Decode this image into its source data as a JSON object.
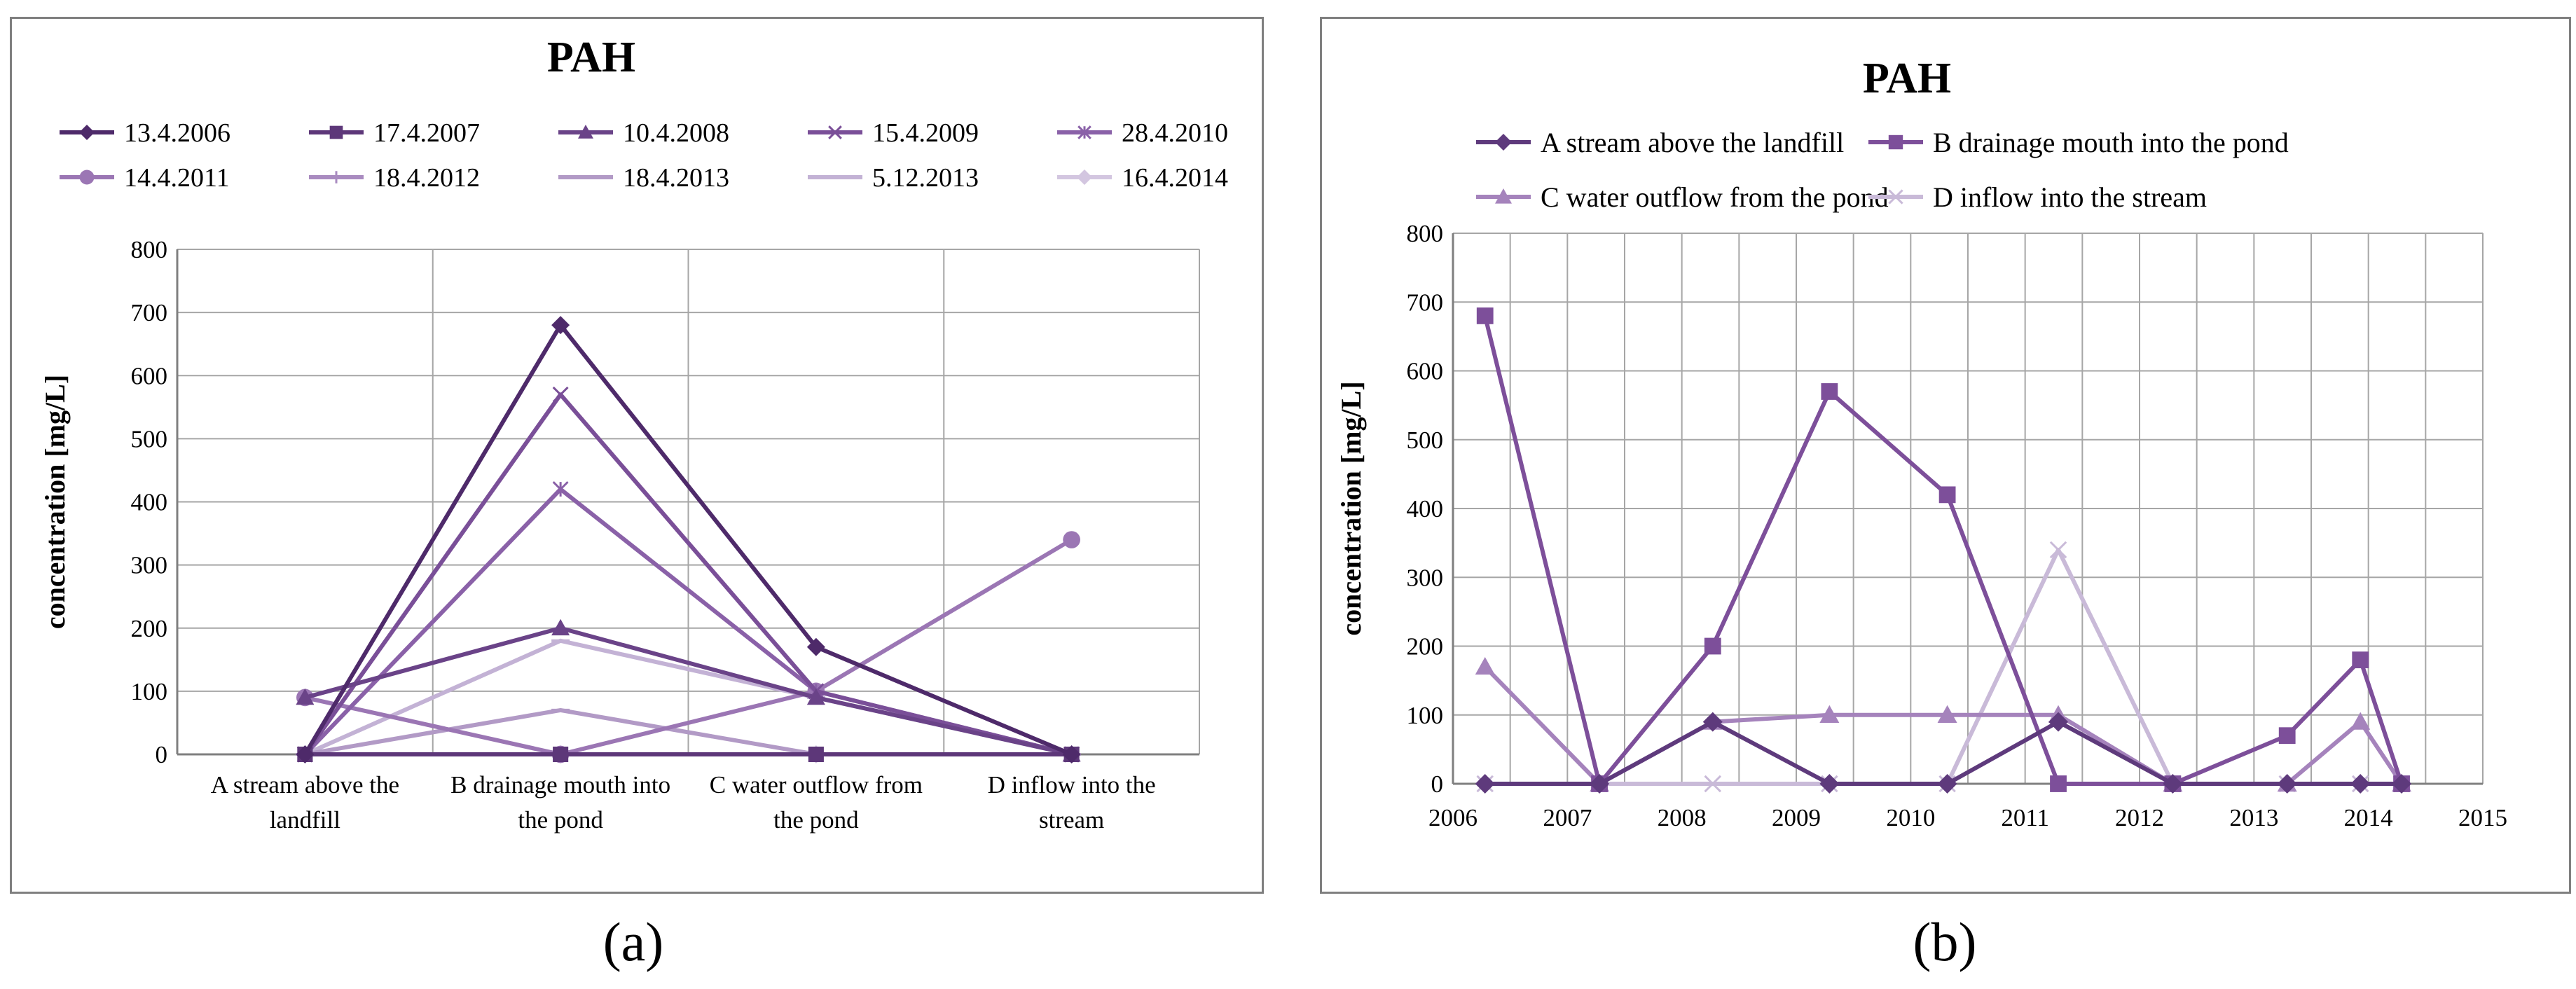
{
  "figure_captions": [
    "(a)",
    "(b)"
  ],
  "chart_data": [
    {
      "type": "line",
      "title": "PAH",
      "xlabel": "",
      "ylabel": "concentration [mg/L]",
      "ylim": [
        0,
        800
      ],
      "yticks": [
        0,
        100,
        200,
        300,
        400,
        500,
        600,
        700,
        800
      ],
      "categories": [
        "A stream above the landfill",
        "B drainage mouth into the pond",
        "C water outflow from the pond",
        "D inflow into the stream"
      ],
      "category_lines": [
        [
          "A stream above the",
          "landfill"
        ],
        [
          "B drainage mouth into",
          "the pond"
        ],
        [
          "C water outflow from",
          "the pond"
        ],
        [
          "D inflow into the",
          "stream"
        ]
      ],
      "legend_position": "top",
      "series": [
        {
          "name": "13.4.2006",
          "marker": "diamond",
          "color": "#4e2a6a",
          "values": [
            0,
            680,
            170,
            0
          ]
        },
        {
          "name": "17.4.2007",
          "marker": "square",
          "color": "#5d3779",
          "values": [
            0,
            0,
            0,
            0
          ]
        },
        {
          "name": "10.4.2008",
          "marker": "triangle",
          "color": "#6a4388",
          "values": [
            90,
            200,
            90,
            0
          ]
        },
        {
          "name": "15.4.2009",
          "marker": "x",
          "color": "#7a4f98",
          "values": [
            0,
            570,
            100,
            0
          ]
        },
        {
          "name": "28.4.2010",
          "marker": "star",
          "color": "#8a61a8",
          "values": [
            0,
            420,
            100,
            0
          ]
        },
        {
          "name": "14.4.2011",
          "marker": "circle",
          "color": "#9b76b4",
          "values": [
            90,
            0,
            100,
            340
          ]
        },
        {
          "name": "18.4.2012",
          "marker": "plus",
          "color": "#a98bc0",
          "values": [
            0,
            0,
            0,
            0
          ]
        },
        {
          "name": "18.4.2013",
          "marker": "dash",
          "color": "#b29ac6",
          "values": [
            0,
            70,
            0,
            0
          ]
        },
        {
          "name": "5.12.2013",
          "marker": "dash",
          "color": "#c3b2d5",
          "values": [
            0,
            180,
            90,
            0
          ]
        },
        {
          "name": "16.4.2014",
          "marker": "diamond",
          "color": "#d3c6e0",
          "values": [
            0,
            0,
            0,
            0
          ]
        }
      ]
    },
    {
      "type": "line",
      "title": "PAH",
      "xlabel": "",
      "ylabel": "concentration [mg/L]",
      "xlim": [
        2006,
        2015
      ],
      "xticks": [
        2006,
        2007,
        2008,
        2009,
        2010,
        2011,
        2012,
        2013,
        2014,
        2015
      ],
      "ylim": [
        0,
        800
      ],
      "yticks": [
        0,
        100,
        200,
        300,
        400,
        500,
        600,
        700,
        800
      ],
      "legend_position": "top",
      "series": [
        {
          "name": "A stream above the landfill",
          "marker": "diamond",
          "color": "#5e3a7c",
          "x": [
            2006.28,
            2007.28,
            2008.27,
            2009.29,
            2010.32,
            2011.29,
            2012.29,
            2013.29,
            2013.93,
            2014.29
          ],
          "values": [
            0,
            0,
            90,
            0,
            0,
            90,
            0,
            0,
            0,
            0
          ]
        },
        {
          "name": "B drainage mouth into the pond",
          "marker": "square",
          "color": "#7d4f9a",
          "x": [
            2006.28,
            2007.28,
            2008.27,
            2009.29,
            2010.32,
            2011.29,
            2012.29,
            2013.29,
            2013.93,
            2014.29
          ],
          "values": [
            680,
            0,
            200,
            570,
            420,
            0,
            0,
            70,
            180,
            0
          ]
        },
        {
          "name": "C water outflow from the pond",
          "marker": "triangle",
          "color": "#a583bc",
          "x": [
            2006.28,
            2007.28,
            2008.27,
            2009.29,
            2010.32,
            2011.29,
            2012.29,
            2013.29,
            2013.93,
            2014.29
          ],
          "values": [
            170,
            0,
            90,
            100,
            100,
            100,
            0,
            0,
            90,
            0
          ]
        },
        {
          "name": "D inflow into the stream",
          "marker": "x",
          "color": "#c9bad8",
          "x": [
            2006.28,
            2007.28,
            2008.27,
            2009.29,
            2010.32,
            2011.29,
            2012.29,
            2013.29,
            2013.93,
            2014.29
          ],
          "values": [
            0,
            0,
            0,
            0,
            0,
            340,
            0,
            0,
            0,
            0
          ]
        }
      ]
    }
  ]
}
